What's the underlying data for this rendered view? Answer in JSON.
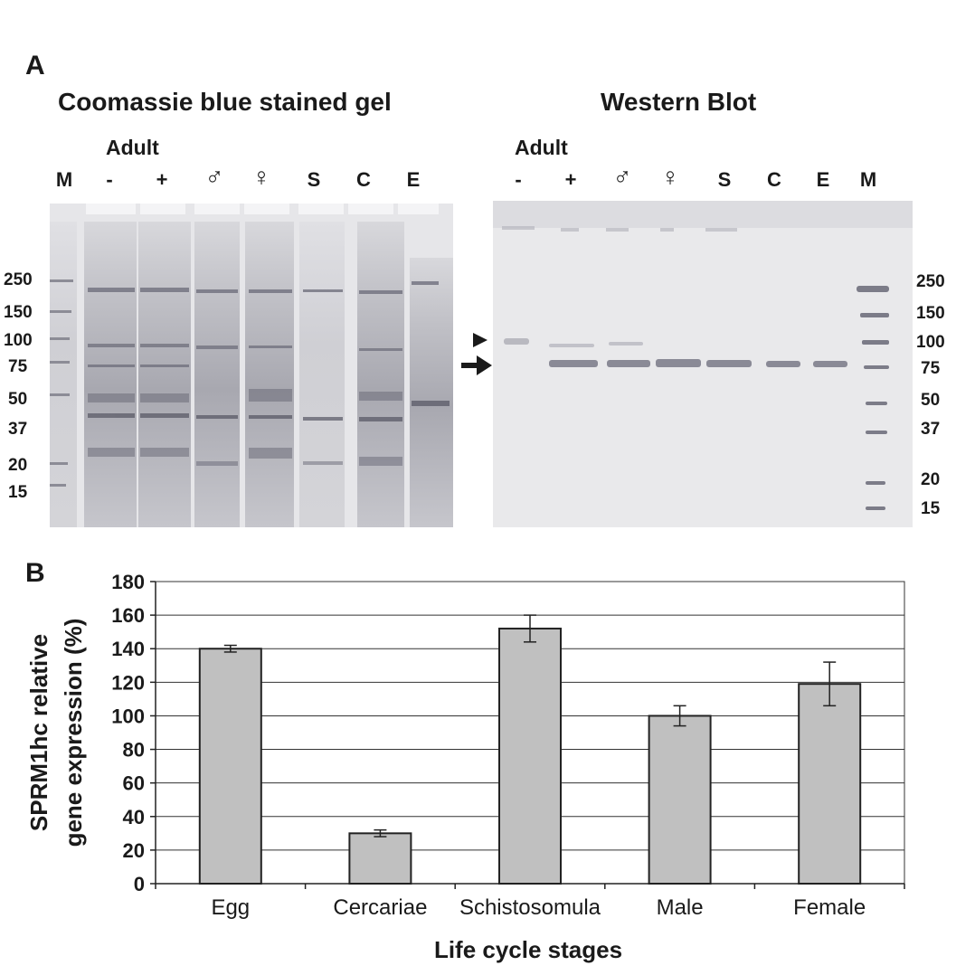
{
  "panel_a": {
    "letter": "A",
    "gel_title": "Coomassie blue stained gel",
    "blot_title": "Western Blot",
    "adult_label": "Adult",
    "gel_lanes": [
      "M",
      "-",
      "+",
      "♂",
      "♀",
      "S",
      "C",
      "E"
    ],
    "blot_lanes": [
      "-",
      "+",
      "♂",
      "♀",
      "S",
      "C",
      "E",
      "M"
    ],
    "gel_markers": [
      "250",
      "150",
      "100",
      "75",
      "50",
      "37",
      "20",
      "15"
    ],
    "blot_markers": [
      "250",
      "150",
      "100",
      "75",
      "50",
      "37",
      "20",
      "15"
    ]
  },
  "panel_b": {
    "letter": "B"
  },
  "chart_data": {
    "type": "bar",
    "categories": [
      "Egg",
      "Cercariae",
      "Schistosomula",
      "Male",
      "Female"
    ],
    "values": [
      140,
      30,
      152,
      100,
      119
    ],
    "errors": [
      2,
      2,
      8,
      6,
      13
    ],
    "xlabel": "Life cycle stages",
    "ylabel_line1": "SPRM1hc relative",
    "ylabel_line2": "gene expression (%)",
    "ylim": [
      0,
      180
    ],
    "yticks": [
      0,
      20,
      40,
      60,
      80,
      100,
      120,
      140,
      160,
      180
    ],
    "grid": true,
    "bar_color": "#c0c0c0"
  }
}
